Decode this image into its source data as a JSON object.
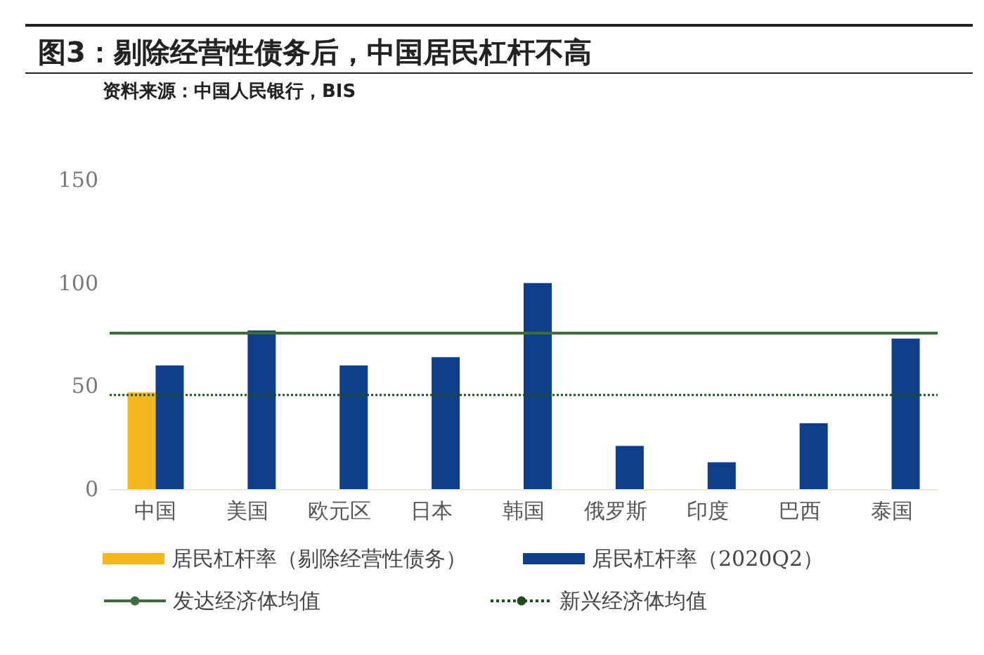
{
  "chart_data": {
    "type": "bar",
    "title": "图3：剔除经营性债务后，中国居民杠杆不高",
    "subtitle": "资料来源：中国人民银行，BIS",
    "categories": [
      "中国",
      "美国",
      "欧元区",
      "日本",
      "韩国",
      "俄罗斯",
      "印度",
      "巴西",
      "泰国"
    ],
    "series": [
      {
        "name": "居民杠杆率（剔除经营性债务）",
        "color": "#f5b81c",
        "values": [
          47,
          null,
          null,
          null,
          null,
          null,
          null,
          null,
          null
        ]
      },
      {
        "name": "居民杠杆率（2020Q2）",
        "color": "#0f3e8a",
        "values": [
          60,
          77,
          60,
          64,
          100,
          21,
          13,
          32,
          73
        ]
      }
    ],
    "ref_lines": [
      {
        "axis": "y",
        "value": 76,
        "label": "发达经济体均值",
        "color": "#3d6b3d",
        "line_style": "solid"
      },
      {
        "axis": "y",
        "value": 46,
        "label": "新兴经济体均值",
        "color": "#1e4a1e",
        "line_style": "dotted"
      }
    ],
    "ylim": [
      0,
      150
    ],
    "yticks": [
      0,
      50,
      100,
      150
    ],
    "grid": false,
    "legend": "bottom"
  }
}
